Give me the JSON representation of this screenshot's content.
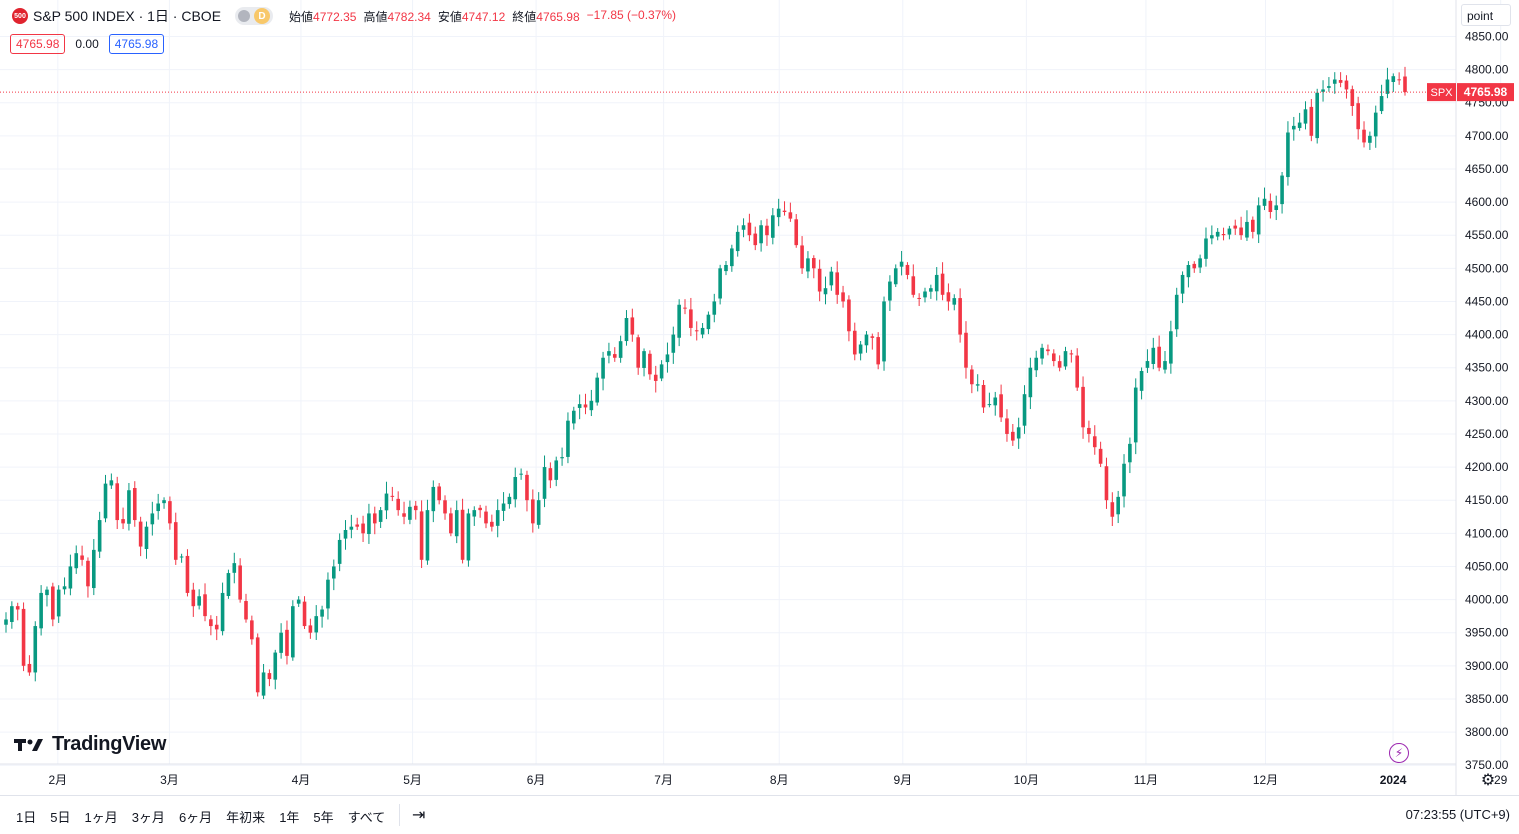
{
  "header": {
    "symbol_logo": "500",
    "title": "S&P 500 INDEX · 1日 · CBOE",
    "interval_badge": "D",
    "open_label": "始値",
    "open": "4772.35",
    "high_label": "高値",
    "high": "4782.34",
    "low_label": "安値",
    "low": "4747.12",
    "close_label": "終値",
    "close": "4765.98",
    "change": "−17.85 (−0.37%)"
  },
  "buy_sell": {
    "sell": "4765.98",
    "spread": "0.00",
    "buy": "4765.98"
  },
  "scale_mode": "point",
  "price_tag": {
    "symbol": "SPX",
    "value": "4765.98"
  },
  "logo_text": "TradingView",
  "time_ranges": [
    "1日",
    "5日",
    "1ヶ月",
    "3ヶ月",
    "6ヶ月",
    "年初来",
    "1年",
    "5年",
    "すべて"
  ],
  "clock": "07:23:55 (UTC+9)",
  "colors": {
    "up": "#089981",
    "down": "#f23645",
    "grid": "#f0f3fa",
    "price_line": "#f23645"
  },
  "chart_data": {
    "type": "candlestick",
    "y_ticks": [
      3750,
      3800,
      3850,
      3900,
      3950,
      4000,
      4050,
      4100,
      4150,
      4200,
      4250,
      4300,
      4350,
      4400,
      4450,
      4500,
      4550,
      4600,
      4650,
      4700,
      4750,
      4800,
      4850
    ],
    "y_tick_labels": [
      "3750.00",
      "3800.00",
      "3850.00",
      "3900.00",
      "3950.00",
      "4000.00",
      "4050.00",
      "4100.00",
      "4150.00",
      "4200.00",
      "4250.00",
      "4300.00",
      "4350.00",
      "4400.00",
      "4450.00",
      "4500.00",
      "4550.00",
      "4600.00",
      "4650.00",
      "4700.00",
      "4750.00",
      "4800.00",
      "4850.00"
    ],
    "x_labels": [
      {
        "label": "2月",
        "date": "2023-02-01"
      },
      {
        "label": "3月",
        "date": "2023-03-01"
      },
      {
        "label": "4月",
        "date": "2023-04-03"
      },
      {
        "label": "5月",
        "date": "2023-05-01"
      },
      {
        "label": "6月",
        "date": "2023-06-01"
      },
      {
        "label": "7月",
        "date": "2023-07-03"
      },
      {
        "label": "8月",
        "date": "2023-08-01"
      },
      {
        "label": "9月",
        "date": "2023-09-01"
      },
      {
        "label": "10月",
        "date": "2023-10-02"
      },
      {
        "label": "11月",
        "date": "2023-11-01"
      },
      {
        "label": "12月",
        "date": "2023-12-01"
      },
      {
        "label": "2024",
        "date": "2024-01-02"
      },
      {
        "label": "29",
        "date": "2024-01-29"
      }
    ],
    "ylim": [
      3705,
      4905
    ],
    "last_price": 4765.98,
    "closes": [
      3970,
      3990,
      3985,
      3900,
      3890,
      3960,
      4010,
      4015,
      3970,
      4015,
      4020,
      4050,
      4070,
      4060,
      4020,
      4075,
      4120,
      4175,
      4180,
      4120,
      4115,
      4165,
      4120,
      4080,
      4110,
      4130,
      4145,
      4150,
      4115,
      4060,
      4065,
      4010,
      3990,
      4005,
      3975,
      3960,
      3955,
      4010,
      4040,
      4055,
      4000,
      3970,
      3940,
      3860,
      3890,
      3880,
      3920,
      3950,
      3915,
      3990,
      4000,
      3960,
      3950,
      3975,
      3985,
      4030,
      4050,
      4090,
      4105,
      4110,
      4110,
      4100,
      4130,
      4115,
      4135,
      4160,
      4155,
      4135,
      4125,
      4140,
      4135,
      4060,
      4135,
      4170,
      4150,
      4130,
      4100,
      4135,
      4060,
      4130,
      4135,
      4135,
      4115,
      4110,
      4135,
      4145,
      4155,
      4185,
      4190,
      4150,
      4115,
      4150,
      4200,
      4180,
      4210,
      4215,
      4270,
      4285,
      4295,
      4290,
      4300,
      4335,
      4365,
      4375,
      4365,
      4390,
      4425,
      4400,
      4350,
      4375,
      4340,
      4330,
      4355,
      4370,
      4400,
      4445,
      4440,
      4410,
      4405,
      4410,
      4430,
      4450,
      4500,
      4505,
      4530,
      4555,
      4565,
      4550,
      4535,
      4565,
      4550,
      4580,
      4590,
      4585,
      4575,
      4535,
      4500,
      4515,
      4500,
      4465,
      4470,
      4495,
      4460,
      4450,
      4405,
      4370,
      4385,
      4400,
      4395,
      4355,
      4450,
      4480,
      4500,
      4510,
      4490,
      4460,
      4455,
      4465,
      4470,
      4490,
      4460,
      4450,
      4455,
      4400,
      4350,
      4325,
      4325,
      4290,
      4295,
      4305,
      4275,
      4250,
      4240,
      4260,
      4310,
      4350,
      4365,
      4380,
      4375,
      4360,
      4350,
      4375,
      4370,
      4320,
      4260,
      4250,
      4230,
      4205,
      4150,
      4125,
      4155,
      4205,
      4235,
      4320,
      4345,
      4360,
      4380,
      4350,
      4360,
      4405,
      4460,
      4490,
      4505,
      4500,
      4515,
      4545,
      4550,
      4555,
      4550,
      4560,
      4560,
      4550,
      4570,
      4555,
      4595,
      4605,
      4585,
      4595,
      4640,
      4705,
      4715,
      4720,
      4740,
      4700,
      4765,
      4770,
      4775,
      4785,
      4780,
      4770,
      4745,
      4710,
      4690,
      4700,
      4735,
      4760,
      4785,
      4790,
      4785,
      4765.98
    ]
  }
}
